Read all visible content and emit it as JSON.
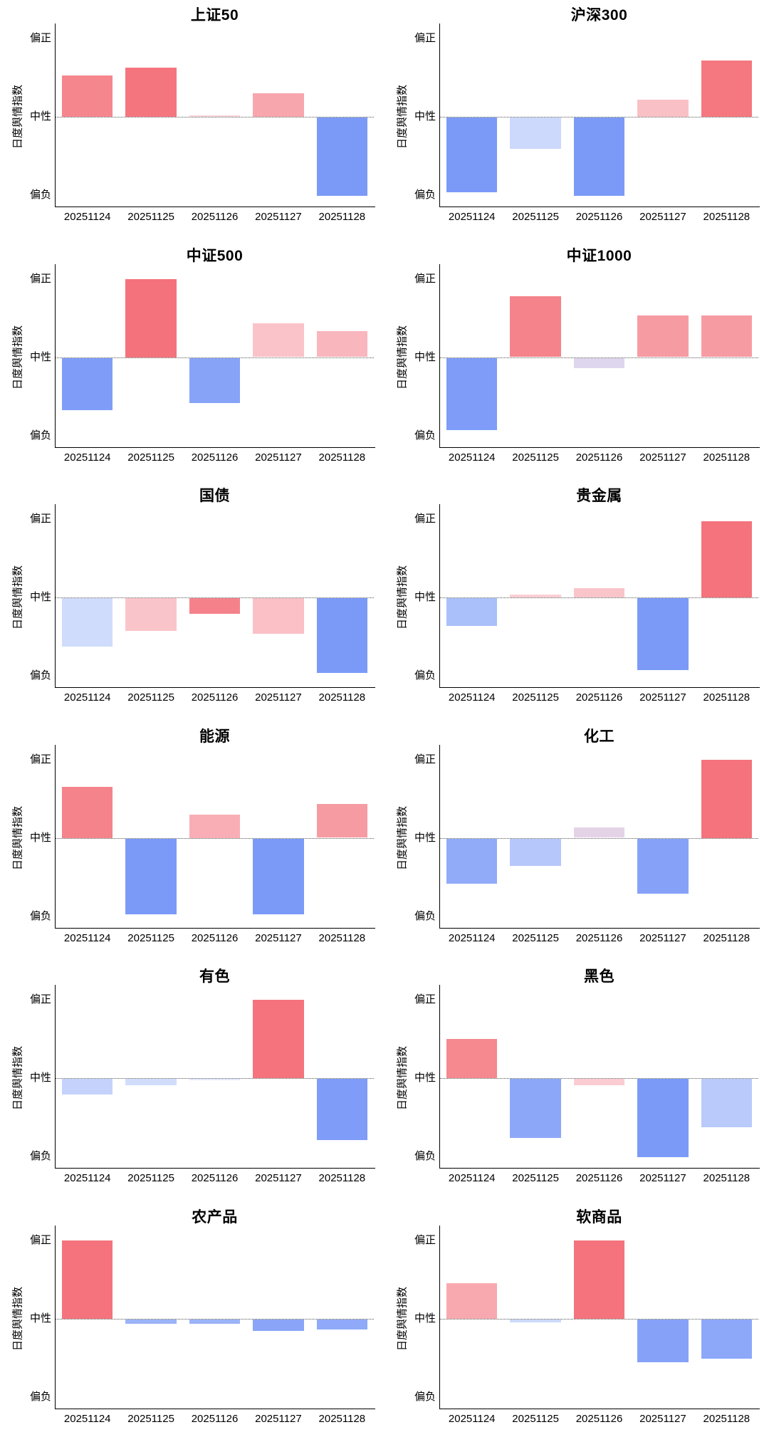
{
  "page": {
    "background": "#ffffff"
  },
  "axis": {
    "ylabel": "日度舆情指数",
    "ytick_positive": "偏正",
    "ytick_neutral": "中性",
    "ytick_negative": "偏负"
  },
  "dates": [
    "20251124",
    "20251125",
    "20251126",
    "20251127",
    "20251128"
  ],
  "palette": {
    "strong_red": "#f4737c",
    "strong_blue": "#7b9af8",
    "neutral_line": "#555555",
    "axis_color": "#000000"
  },
  "chart_data": [
    {
      "type": "bar",
      "title": "上证50",
      "ylabel": "日度舆情指数",
      "yticks": [
        "偏正",
        "中性",
        "偏负"
      ],
      "ylim": [
        -1.15,
        1.15
      ],
      "zero_line": "dotted",
      "grid": false,
      "legend": "none",
      "categories": [
        "20251124",
        "20251125",
        "20251126",
        "20251127",
        "20251128"
      ],
      "values": [
        0.53,
        0.63,
        0.02,
        0.3,
        -1.0
      ],
      "colors": [
        "#f6868e",
        "#f5757f",
        "#fbd4d8",
        "#f8a6ad",
        "#7b9af8"
      ]
    },
    {
      "type": "bar",
      "title": "沪深300",
      "ylabel": "日度舆情指数",
      "yticks": [
        "偏正",
        "中性",
        "偏负"
      ],
      "ylim": [
        -1.15,
        1.15
      ],
      "zero_line": "dotted",
      "grid": false,
      "legend": "none",
      "categories": [
        "20251124",
        "20251125",
        "20251126",
        "20251127",
        "20251128"
      ],
      "values": [
        -0.95,
        -0.4,
        -1.0,
        0.22,
        0.72
      ],
      "colors": [
        "#7b9af8",
        "#ccd9fc",
        "#7b9af8",
        "#f9c0c6",
        "#f5777f"
      ]
    },
    {
      "type": "bar",
      "title": "中证500",
      "ylabel": "日度舆情指数",
      "yticks": [
        "偏正",
        "中性",
        "偏负"
      ],
      "ylim": [
        -1.15,
        1.15
      ],
      "zero_line": "dotted",
      "grid": false,
      "legend": "none",
      "categories": [
        "20251124",
        "20251125",
        "20251126",
        "20251127",
        "20251128"
      ],
      "values": [
        -0.67,
        1.0,
        -0.58,
        0.43,
        0.33
      ],
      "colors": [
        "#7f9df8",
        "#f4727b",
        "#87a3f8",
        "#fac3c9",
        "#f9b6bd"
      ]
    },
    {
      "type": "bar",
      "title": "中证1000",
      "ylabel": "日度舆情指数",
      "yticks": [
        "偏正",
        "中性",
        "偏负"
      ],
      "ylim": [
        -1.15,
        1.15
      ],
      "zero_line": "dotted",
      "grid": false,
      "legend": "none",
      "categories": [
        "20251124",
        "20251125",
        "20251126",
        "20251127",
        "20251128"
      ],
      "values": [
        -0.92,
        0.78,
        -0.13,
        0.53,
        0.53
      ],
      "colors": [
        "#7e9cf8",
        "#f5838b",
        "#ded5ee",
        "#f79ba3",
        "#f79ba3"
      ]
    },
    {
      "type": "bar",
      "title": "国债",
      "ylabel": "日度舆情指数",
      "yticks": [
        "偏正",
        "中性",
        "偏负"
      ],
      "ylim": [
        -1.15,
        1.15
      ],
      "zero_line": "dotted",
      "grid": false,
      "legend": "none",
      "categories": [
        "20251124",
        "20251125",
        "20251126",
        "20251127",
        "20251128"
      ],
      "values": [
        -0.62,
        -0.42,
        -0.2,
        -0.45,
        -0.95
      ],
      "colors": [
        "#d0dcfc",
        "#fac5ca",
        "#f5828b",
        "#fac0c6",
        "#7b9af8"
      ]
    },
    {
      "type": "bar",
      "title": "贵金属",
      "ylabel": "日度舆情指数",
      "yticks": [
        "偏正",
        "中性",
        "偏负"
      ],
      "ylim": [
        -1.15,
        1.15
      ],
      "zero_line": "dotted",
      "grid": false,
      "legend": "none",
      "categories": [
        "20251124",
        "20251125",
        "20251126",
        "20251127",
        "20251128"
      ],
      "values": [
        -0.35,
        0.04,
        0.12,
        -0.92,
        0.97
      ],
      "colors": [
        "#a9c0fa",
        "#fbced2",
        "#f9c4ca",
        "#7b9af8",
        "#f4737c"
      ]
    },
    {
      "type": "bar",
      "title": "能源",
      "ylabel": "日度舆情指数",
      "yticks": [
        "偏正",
        "中性",
        "偏负"
      ],
      "ylim": [
        -1.15,
        1.15
      ],
      "zero_line": "dotted",
      "grid": false,
      "legend": "none",
      "categories": [
        "20251124",
        "20251125",
        "20251126",
        "20251127",
        "20251128"
      ],
      "values": [
        0.65,
        -0.97,
        0.3,
        -0.97,
        0.43
      ],
      "colors": [
        "#f5838b",
        "#7b9af8",
        "#f9aeb5",
        "#7b9af8",
        "#f79ba3"
      ]
    },
    {
      "type": "bar",
      "title": "化工",
      "ylabel": "日度舆情指数",
      "yticks": [
        "偏正",
        "中性",
        "偏负"
      ],
      "ylim": [
        -1.15,
        1.15
      ],
      "zero_line": "dotted",
      "grid": false,
      "legend": "none",
      "categories": [
        "20251124",
        "20251125",
        "20251126",
        "20251127",
        "20251128"
      ],
      "values": [
        -0.58,
        -0.35,
        0.13,
        -0.7,
        1.0
      ],
      "colors": [
        "#91abf9",
        "#b6c7fb",
        "#e4d3e6",
        "#86a2f8",
        "#f4737c"
      ]
    },
    {
      "type": "bar",
      "title": "有色",
      "ylabel": "日度舆情指数",
      "yticks": [
        "偏正",
        "中性",
        "偏负"
      ],
      "ylim": [
        -1.15,
        1.15
      ],
      "zero_line": "dotted",
      "grid": false,
      "legend": "none",
      "categories": [
        "20251124",
        "20251125",
        "20251126",
        "20251127",
        "20251128"
      ],
      "values": [
        -0.2,
        -0.08,
        -0.02,
        1.0,
        -0.78
      ],
      "colors": [
        "#c5d3fc",
        "#d2ddfd",
        "#e3e9fd",
        "#f4737c",
        "#7e9cf8"
      ]
    },
    {
      "type": "bar",
      "title": "黑色",
      "ylabel": "日度舆情指数",
      "yticks": [
        "偏正",
        "中性",
        "偏负"
      ],
      "ylim": [
        -1.15,
        1.15
      ],
      "zero_line": "dotted",
      "grid": false,
      "legend": "none",
      "categories": [
        "20251124",
        "20251125",
        "20251126",
        "20251127",
        "20251128"
      ],
      "values": [
        0.5,
        -0.75,
        -0.08,
        -1.0,
        -0.62
      ],
      "colors": [
        "#f6888f",
        "#8da7f8",
        "#fbccd1",
        "#7b9af8",
        "#b9cafb"
      ]
    },
    {
      "type": "bar",
      "title": "农产品",
      "ylabel": "日度舆情指数",
      "yticks": [
        "偏正",
        "中性",
        "偏负"
      ],
      "ylim": [
        -1.15,
        1.15
      ],
      "zero_line": "dotted",
      "grid": false,
      "legend": "none",
      "categories": [
        "20251124",
        "20251125",
        "20251126",
        "20251127",
        "20251128"
      ],
      "values": [
        1.0,
        -0.06,
        -0.06,
        -0.15,
        -0.13
      ],
      "colors": [
        "#f4737c",
        "#9bb3f9",
        "#9bb3f9",
        "#8aa5f8",
        "#90aaf9"
      ]
    },
    {
      "type": "bar",
      "title": "软商品",
      "ylabel": "日度舆情指数",
      "yticks": [
        "偏正",
        "中性",
        "偏负"
      ],
      "ylim": [
        -1.15,
        1.15
      ],
      "zero_line": "dotted",
      "grid": false,
      "legend": "none",
      "categories": [
        "20251124",
        "20251125",
        "20251126",
        "20251127",
        "20251128"
      ],
      "values": [
        0.45,
        -0.04,
        1.0,
        -0.55,
        -0.5
      ],
      "colors": [
        "#f8a9b0",
        "#ccd9fc",
        "#f4737c",
        "#86a2f8",
        "#8da8f9"
      ]
    }
  ]
}
